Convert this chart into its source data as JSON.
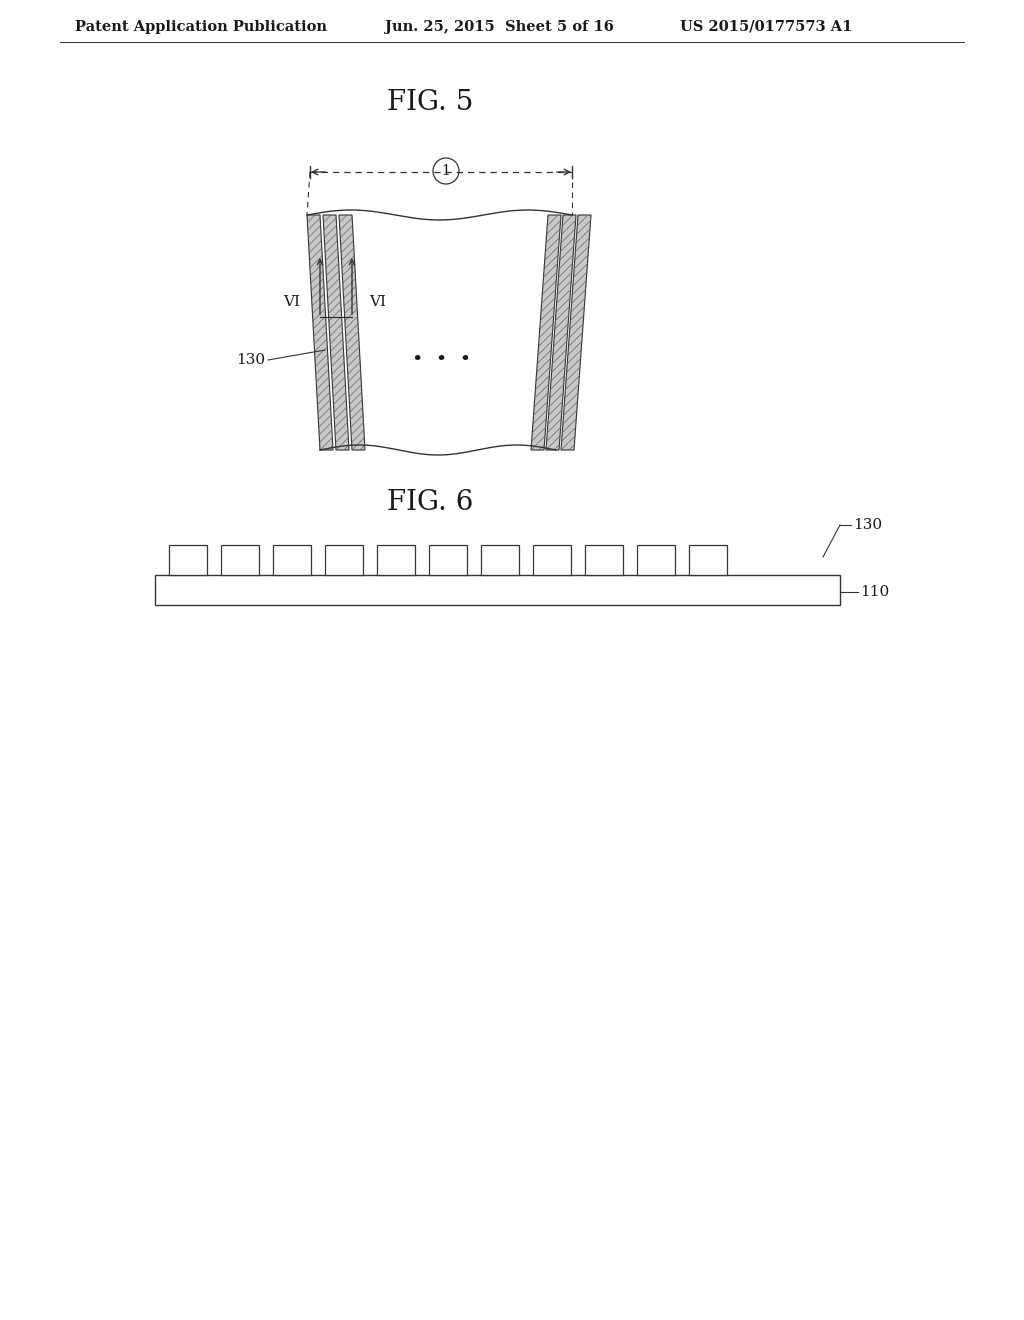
{
  "background_color": "#ffffff",
  "header_text": "Patent Application Publication",
  "header_date": "Jun. 25, 2015  Sheet 5 of 16",
  "header_patent": "US 2015/0177573 A1",
  "fig5_title": "FIG. 5",
  "fig6_title": "FIG. 6",
  "label_130_fig5": "130",
  "label_VI_left": "VI",
  "label_VI_right": "VI",
  "label_dots": "•  •  •",
  "label_130_fig6": "130",
  "label_110": "110",
  "line_color": "#333333",
  "hatch_color": "#aaaaaa",
  "text_color": "#1a1a1a"
}
